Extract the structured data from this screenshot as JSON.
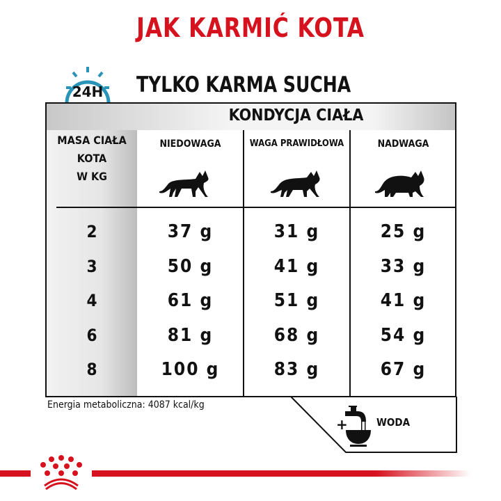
{
  "title": "JAK KARMIĆ KOTA",
  "subtitle": "TYLKO KARMA SUCHA",
  "clock_label": "24H",
  "table": {
    "header": "KONDYCJA CIAŁA",
    "row_header": [
      "MASA CIAŁA",
      "KOTA",
      "W KG"
    ],
    "columns": [
      "NIEDOWAGA",
      "WAGA PRAWIDŁOWA",
      "NADWAGA"
    ],
    "rows": [
      {
        "kg": "2",
        "values": [
          "37 g",
          "31 g",
          "25 g"
        ]
      },
      {
        "kg": "3",
        "values": [
          "50 g",
          "41 g",
          "33 g"
        ]
      },
      {
        "kg": "4",
        "values": [
          "61 g",
          "51 g",
          "41 g"
        ]
      },
      {
        "kg": "6",
        "values": [
          "81 g",
          "68 g",
          "54 g"
        ]
      },
      {
        "kg": "8",
        "values": [
          "100 g",
          "83 g",
          "67 g"
        ]
      }
    ]
  },
  "energy": "Energia metaboliczna: 4087 kcal/kg",
  "water": {
    "plus": "+",
    "label": "WODA"
  },
  "colors": {
    "brand_red": "#d6121e",
    "clock_blue": "#2a93b8"
  }
}
